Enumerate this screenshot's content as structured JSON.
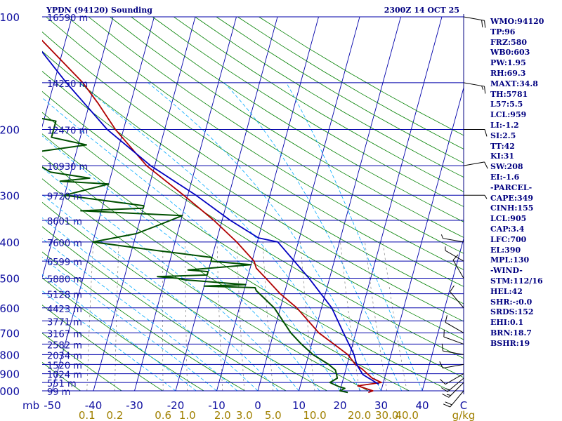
{
  "header": {
    "station": "YPDN (94120) Sounding",
    "time": "2300Z 14 OCT 25"
  },
  "params": [
    "WMO:94120",
    "TP:96",
    "FRZ:580",
    "WB0:603",
    "PW:1.95",
    "RH:69.3",
    "MAXT:34.8",
    "TH:5781",
    "L57:5.5",
    "LCL:959",
    "LI:-1.2",
    "SI:2.5",
    "TT:42",
    "KI:31",
    "SW:208",
    "EI:-1.6",
    "-PARCEL-",
    "CAPE:349",
    "CINH:155",
    "LCL:905",
    "CAP:3.4",
    "LFC:700",
    "EL:390",
    "MPL:130",
    "-WIND-",
    "STM:112/16",
    "HEL:42",
    "SHR:-:0.0",
    "SRDS:152",
    "EHI:0.1",
    "BRN:18.7",
    "BSHR:19"
  ],
  "colors": {
    "isobar": "#0000aa",
    "isotherm": "#0000aa",
    "dry_adiabat": "#008000",
    "moist_adiabat": "#00aaff",
    "mixing_ratio": "#808080",
    "temperature": "#b00000",
    "dewpoint": "#005000",
    "parcel": "#0000c0",
    "pressure_label": "#1010a0",
    "height_label": "#1010a0",
    "temp_label": "#1010a0",
    "mixing_label": "#a08000",
    "wind_barb": "#000000"
  },
  "chart_data": {
    "type": "line",
    "title": "YPDN (94120) Sounding",
    "xlabel": "",
    "ylabel": "mb",
    "x_unit_right": "C",
    "mixing_unit": "g/kg",
    "grid": true,
    "pressure_levels": [
      100,
      200,
      300,
      400,
      500,
      600,
      700,
      800,
      900,
      1000
    ],
    "pressure_range": [
      100,
      1000
    ],
    "y_scale": "log",
    "temperature_ticks": [
      -50,
      -40,
      -30,
      -20,
      -10,
      0,
      10,
      20,
      30,
      40
    ],
    "temperature_tick_labels": [
      "-50",
      "-40",
      "-30",
      "-20",
      "-10",
      "0",
      "10",
      "20",
      "30",
      "40"
    ],
    "mixing_ratio_ticks": [
      0.1,
      0.2,
      0.6,
      1.0,
      2.0,
      3.0,
      5.0,
      10.0,
      20.0,
      30.0,
      40.0
    ],
    "mixing_ratio_tick_labels": [
      "0.1",
      "0.2",
      "0.6",
      "1.0",
      "2.0",
      "3.0",
      "5.0",
      "10.0",
      "20.0",
      "30.0",
      "40.0"
    ],
    "heights": [
      {
        "p": 100,
        "label": "16590 m"
      },
      {
        "p": 150,
        "label": "14250 m"
      },
      {
        "p": 200,
        "label": "12470 m"
      },
      {
        "p": 250,
        "label": "10930 m"
      },
      {
        "p": 300,
        "label": "9720 m"
      },
      {
        "p": 350,
        "label": "8601 m"
      },
      {
        "p": 400,
        "label": "7600 m"
      },
      {
        "p": 450,
        "label": "6599 m"
      },
      {
        "p": 500,
        "label": "5880 m"
      },
      {
        "p": 550,
        "label": "5128 m"
      },
      {
        "p": 600,
        "label": "4423 m"
      },
      {
        "p": 650,
        "label": "3771 m"
      },
      {
        "p": 700,
        "label": "3167 m"
      },
      {
        "p": 750,
        "label": "2582 m"
      },
      {
        "p": 800,
        "label": "2034 m"
      },
      {
        "p": 850,
        "label": "1520 m"
      },
      {
        "p": 900,
        "label": "1024 m"
      },
      {
        "p": 950,
        "label": "551 m"
      },
      {
        "p": 1000,
        "label": "99 m"
      }
    ],
    "series": [
      {
        "key": "temperature",
        "points": [
          [
            1010,
            27
          ],
          [
            1000,
            28
          ],
          [
            985,
            26
          ],
          [
            970,
            24
          ],
          [
            950,
            29.5
          ],
          [
            925,
            27
          ],
          [
            900,
            25.5
          ],
          [
            875,
            24
          ],
          [
            850,
            22
          ],
          [
            800,
            19.5
          ],
          [
            700,
            11
          ],
          [
            600,
            4
          ],
          [
            550,
            -1
          ],
          [
            500,
            -5.5
          ],
          [
            470,
            -8.5
          ],
          [
            450,
            -9.5
          ],
          [
            400,
            -15
          ],
          [
            350,
            -22
          ],
          [
            300,
            -31
          ],
          [
            250,
            -42
          ],
          [
            200,
            -52
          ],
          [
            170,
            -58
          ],
          [
            150,
            -63
          ],
          [
            130,
            -70
          ],
          [
            115,
            -76
          ],
          [
            100,
            -80
          ]
        ]
      },
      {
        "key": "dewpoint",
        "points": [
          [
            1010,
            22
          ],
          [
            1000,
            20
          ],
          [
            985,
            21
          ],
          [
            975,
            19.5
          ],
          [
            960,
            18
          ],
          [
            950,
            17
          ],
          [
            925,
            18.5
          ],
          [
            900,
            18
          ],
          [
            880,
            17.5
          ],
          [
            850,
            15.5
          ],
          [
            800,
            11
          ],
          [
            750,
            7.5
          ],
          [
            700,
            4.2
          ],
          [
            600,
            -1.5
          ],
          [
            550,
            -6
          ],
          [
            540,
            -7
          ],
          [
            530,
            -7.5
          ],
          [
            525,
            -20
          ],
          [
            520,
            -10
          ],
          [
            515,
            -15
          ],
          [
            510,
            -20
          ],
          [
            505,
            -25
          ],
          [
            500,
            -27
          ],
          [
            495,
            -32
          ],
          [
            490,
            -20
          ],
          [
            480,
            -20
          ],
          [
            475,
            -25
          ],
          [
            470,
            -20
          ],
          [
            465,
            -15
          ],
          [
            460,
            -10
          ],
          [
            450,
            -20
          ],
          [
            440,
            -20
          ],
          [
            420,
            -35
          ],
          [
            400,
            -50
          ],
          [
            380,
            -40
          ],
          [
            360,
            -35
          ],
          [
            340,
            -30
          ],
          [
            330,
            -55
          ],
          [
            325,
            -40
          ],
          [
            320,
            -40
          ],
          [
            300,
            -60
          ],
          [
            280,
            -50
          ],
          [
            275,
            -62
          ],
          [
            270,
            -55
          ],
          [
            260,
            -65
          ],
          [
            250,
            -68
          ],
          [
            240,
            -70
          ],
          [
            230,
            -70
          ],
          [
            220,
            -58
          ],
          [
            210,
            -67
          ],
          [
            200,
            -67
          ],
          [
            190,
            -67
          ],
          [
            185,
            -73
          ],
          [
            180,
            -73
          ],
          [
            175,
            -78
          ],
          [
            170,
            -77
          ],
          [
            165,
            -80
          ],
          [
            160,
            -80
          ],
          [
            155,
            -82
          ],
          [
            150,
            -90
          ],
          [
            140,
            -90
          ],
          [
            130,
            -84
          ],
          [
            120,
            -84
          ],
          [
            110,
            -84
          ],
          [
            100,
            -85
          ]
        ]
      },
      {
        "key": "parcel",
        "points": [
          [
            960,
            29
          ],
          [
            905,
            24.5
          ],
          [
            850,
            22.3
          ],
          [
            800,
            21
          ],
          [
            700,
            17
          ],
          [
            600,
            12.5
          ],
          [
            500,
            5
          ],
          [
            400,
            -5
          ],
          [
            390,
            -10
          ],
          [
            350,
            -18
          ],
          [
            300,
            -28
          ],
          [
            250,
            -41
          ],
          [
            200,
            -54
          ],
          [
            150,
            -67
          ],
          [
            100,
            -84
          ]
        ]
      }
    ],
    "wind_barbs": [
      {
        "p": 1000,
        "dir": 220,
        "kt": 20
      },
      {
        "p": 950,
        "dir": 225,
        "kt": 15
      },
      {
        "p": 925,
        "dir": 230,
        "kt": 15
      },
      {
        "p": 900,
        "dir": 240,
        "kt": 10
      },
      {
        "p": 850,
        "dir": 260,
        "kt": 10
      },
      {
        "p": 800,
        "dir": 280,
        "kt": 10
      },
      {
        "p": 750,
        "dir": 290,
        "kt": 10
      },
      {
        "p": 700,
        "dir": 300,
        "kt": 10
      },
      {
        "p": 600,
        "dir": 320,
        "kt": 10
      },
      {
        "p": 500,
        "dir": 330,
        "kt": 10
      },
      {
        "p": 450,
        "dir": 300,
        "kt": 5
      },
      {
        "p": 400,
        "dir": 280,
        "kt": 5
      },
      {
        "p": 300,
        "dir": 90,
        "kt": 5
      },
      {
        "p": 250,
        "dir": 80,
        "kt": 10
      },
      {
        "p": 200,
        "dir": 90,
        "kt": 10
      },
      {
        "p": 150,
        "dir": 100,
        "kt": 15
      },
      {
        "p": 100,
        "dir": 100,
        "kt": 20
      }
    ]
  }
}
